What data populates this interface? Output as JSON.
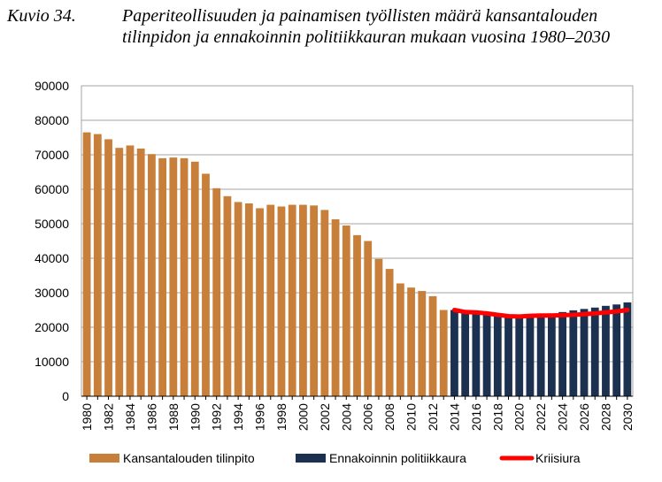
{
  "caption": {
    "number": "Kuvio 34.",
    "title": "Paperiteollisuuden ja painamisen työllisten määrä kansantalouden tilinpidon ja ennakoinnin politiikkauran mukaan vuosina 1980–2030"
  },
  "chart_data": {
    "type": "bar",
    "title": "",
    "xlabel": "",
    "ylabel": "",
    "ylim": [
      0,
      90000
    ],
    "yticks": [
      0,
      10000,
      20000,
      30000,
      40000,
      50000,
      60000,
      70000,
      80000,
      90000
    ],
    "grid": true,
    "legend_position": "bottom",
    "colors": {
      "kansantalous": "#c87f3a",
      "ennakointi": "#1c3150",
      "kriisiura": "#ff0000",
      "grid": "#a6a6a6"
    },
    "categories": [
      "1980",
      "1981",
      "1982",
      "1983",
      "1984",
      "1985",
      "1986",
      "1987",
      "1988",
      "1989",
      "1990",
      "1991",
      "1992",
      "1993",
      "1994",
      "1995",
      "1996",
      "1997",
      "1998",
      "1999",
      "2000",
      "2001",
      "2002",
      "2003",
      "2004",
      "2005",
      "2006",
      "2007",
      "2008",
      "2009",
      "2010",
      "2011",
      "2012",
      "2013",
      "2014",
      "2015",
      "2016",
      "2017",
      "2018",
      "2019",
      "2020",
      "2021",
      "2022",
      "2023",
      "2024",
      "2025",
      "2026",
      "2027",
      "2028",
      "2029",
      "2030"
    ],
    "series": [
      {
        "name": "Kansantalouden tilinpito",
        "type": "bar",
        "color": "#c87f3a",
        "values": [
          76500,
          76000,
          74500,
          72000,
          72700,
          71800,
          70200,
          69000,
          69200,
          69000,
          68000,
          64500,
          60300,
          58000,
          56300,
          55900,
          54500,
          55500,
          55000,
          55500,
          55500,
          55300,
          54000,
          51300,
          49500,
          46700,
          45000,
          39800,
          36900,
          32700,
          31500,
          30500,
          29000,
          25000,
          null,
          null,
          null,
          null,
          null,
          null,
          null,
          null,
          null,
          null,
          null,
          null,
          null,
          null,
          null,
          null,
          null
        ]
      },
      {
        "name": "Ennakoinnin politiikkaura",
        "type": "bar",
        "color": "#1c3150",
        "values": [
          null,
          null,
          null,
          null,
          null,
          null,
          null,
          null,
          null,
          null,
          null,
          null,
          null,
          null,
          null,
          null,
          null,
          null,
          null,
          null,
          null,
          null,
          null,
          null,
          null,
          null,
          null,
          null,
          null,
          null,
          null,
          null,
          null,
          null,
          25000,
          24400,
          24300,
          24000,
          23800,
          23300,
          23200,
          23500,
          23700,
          24000,
          24400,
          24900,
          25300,
          25700,
          26200,
          26600,
          27200
        ]
      },
      {
        "name": "Kriisiura",
        "type": "line",
        "color": "#ff0000",
        "values": [
          null,
          null,
          null,
          null,
          null,
          null,
          null,
          null,
          null,
          null,
          null,
          null,
          null,
          null,
          null,
          null,
          null,
          null,
          null,
          null,
          null,
          null,
          null,
          null,
          null,
          null,
          null,
          null,
          null,
          null,
          null,
          null,
          null,
          null,
          25000,
          24400,
          24300,
          24000,
          23600,
          23200,
          23100,
          23300,
          23400,
          23400,
          23500,
          23600,
          23800,
          24000,
          24300,
          24600,
          25000
        ]
      }
    ]
  }
}
